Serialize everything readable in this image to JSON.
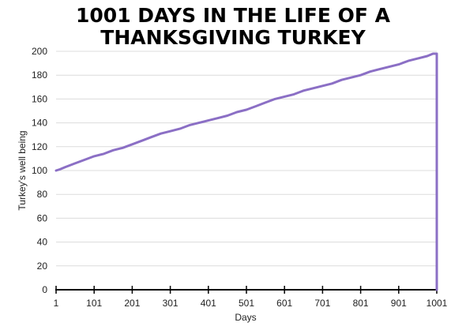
{
  "chart_data": {
    "type": "line",
    "title_lines": [
      "1001 DAYS IN THE LIFE OF A",
      "THANKSGIVING TURKEY"
    ],
    "xlabel": "Days",
    "ylabel": "Turkey's well being",
    "xlim": [
      1,
      1001
    ],
    "ylim": [
      0,
      200
    ],
    "x_ticks": [
      1,
      101,
      201,
      301,
      401,
      501,
      601,
      701,
      801,
      901,
      1001
    ],
    "y_ticks": [
      0,
      20,
      40,
      60,
      80,
      100,
      120,
      140,
      160,
      180,
      200
    ],
    "grid": "horizontal",
    "line_color": "#8b6fc5",
    "series": [
      {
        "x": [
          1,
          11,
          26,
          51,
          76,
          101,
          126,
          151,
          176,
          201,
          226,
          251,
          276,
          301,
          326,
          351,
          376,
          401,
          426,
          451,
          476,
          501,
          526,
          551,
          576,
          601,
          626,
          651,
          676,
          701,
          726,
          751,
          776,
          801,
          826,
          851,
          876,
          901,
          926,
          951,
          976,
          991,
          1001,
          1001
        ],
        "y": [
          100,
          101,
          103,
          106,
          109,
          112,
          114,
          117,
          119,
          122,
          125,
          128,
          131,
          133,
          135,
          138,
          140,
          142,
          144,
          146,
          149,
          151,
          154,
          157,
          160,
          162,
          164,
          167,
          169,
          171,
          173,
          176,
          178,
          180,
          183,
          185,
          187,
          189,
          192,
          194,
          196,
          198,
          198,
          0
        ]
      }
    ]
  }
}
